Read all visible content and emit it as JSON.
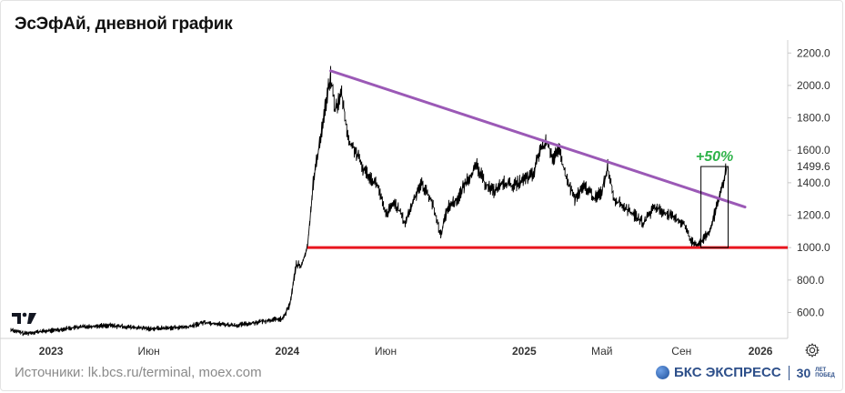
{
  "header": {
    "title": "ЭсЭфАй, дневной график"
  },
  "footer": {
    "source": "Источники: lk.bcs.ru/terminal, moex.com",
    "brand": "БКС ЭКСПРЕСС",
    "brand_number": "30",
    "brand_small": "ЛЕТ ПОБЕД"
  },
  "icons": {
    "settings": "gear-icon",
    "tradingview": "tradingview-logo-icon"
  },
  "colors": {
    "price": "#000000",
    "trendline": "#9b59b6",
    "support": "#e8141e",
    "annotation": "#2fb34a",
    "axis_text": "#333333",
    "brand": "#2d4f8a"
  },
  "chart_data": {
    "type": "line",
    "title": "ЭсЭфАй, дневной график",
    "xlabel": "",
    "ylabel": "",
    "x_ticks": [
      "2023",
      "Июн",
      "2024",
      "Июн",
      "2025",
      "Май",
      "Сен",
      "2026"
    ],
    "x_tick_positions": [
      "2023-01-01",
      "2023-06-01",
      "2024-01-01",
      "2024-06-01",
      "2025-01-01",
      "2025-05-01",
      "2025-09-01",
      "2026-01-01"
    ],
    "y_ticks": [
      "600.0",
      "800.0",
      "1000.0",
      "1200.0",
      "1400.0",
      "1600.0",
      "1800.0",
      "2000.0",
      "2200.0"
    ],
    "ylim": [
      440,
      2280
    ],
    "xlim": [
      "2022-10-31",
      "2026-02-12"
    ],
    "current_price_label": "1499.6",
    "grid": false,
    "series": [
      {
        "points": [
          [
            "2022-10-31",
            495
          ],
          [
            "2022-11-20",
            470
          ],
          [
            "2022-12-10",
            480
          ],
          [
            "2023-01-05",
            490
          ],
          [
            "2023-02-01",
            505
          ],
          [
            "2023-03-01",
            515
          ],
          [
            "2023-04-01",
            520
          ],
          [
            "2023-05-01",
            510
          ],
          [
            "2023-06-01",
            500
          ],
          [
            "2023-07-01",
            505
          ],
          [
            "2023-08-01",
            510
          ],
          [
            "2023-08-25",
            540
          ],
          [
            "2023-09-15",
            530
          ],
          [
            "2023-10-15",
            520
          ],
          [
            "2023-11-15",
            540
          ],
          [
            "2023-12-10",
            555
          ],
          [
            "2023-12-25",
            560
          ],
          [
            "2024-01-05",
            650
          ],
          [
            "2024-01-15",
            900
          ],
          [
            "2024-01-22",
            880
          ],
          [
            "2024-02-01",
            1000
          ],
          [
            "2024-02-10",
            1400
          ],
          [
            "2024-02-20",
            1650
          ],
          [
            "2024-03-01",
            1900
          ],
          [
            "2024-03-08",
            2050
          ],
          [
            "2024-03-15",
            1850
          ],
          [
            "2024-03-25",
            1950
          ],
          [
            "2024-04-05",
            1650
          ],
          [
            "2024-04-15",
            1600
          ],
          [
            "2024-04-25",
            1500
          ],
          [
            "2024-05-05",
            1450
          ],
          [
            "2024-05-20",
            1380
          ],
          [
            "2024-06-01",
            1200
          ],
          [
            "2024-06-15",
            1280
          ],
          [
            "2024-07-01",
            1150
          ],
          [
            "2024-07-15",
            1300
          ],
          [
            "2024-07-25",
            1400
          ],
          [
            "2024-08-10",
            1300
          ],
          [
            "2024-08-25",
            1080
          ],
          [
            "2024-09-05",
            1250
          ],
          [
            "2024-09-20",
            1300
          ],
          [
            "2024-10-05",
            1420
          ],
          [
            "2024-10-20",
            1500
          ],
          [
            "2024-11-01",
            1400
          ],
          [
            "2024-11-15",
            1350
          ],
          [
            "2024-12-01",
            1400
          ],
          [
            "2024-12-15",
            1380
          ],
          [
            "2025-01-01",
            1420
          ],
          [
            "2025-01-15",
            1450
          ],
          [
            "2025-01-25",
            1600
          ],
          [
            "2025-02-05",
            1650
          ],
          [
            "2025-02-15",
            1550
          ],
          [
            "2025-02-25",
            1600
          ],
          [
            "2025-03-05",
            1450
          ],
          [
            "2025-03-20",
            1300
          ],
          [
            "2025-04-05",
            1380
          ],
          [
            "2025-04-20",
            1300
          ],
          [
            "2025-05-01",
            1350
          ],
          [
            "2025-05-10",
            1500
          ],
          [
            "2025-05-20",
            1300
          ],
          [
            "2025-06-01",
            1260
          ],
          [
            "2025-06-20",
            1200
          ],
          [
            "2025-07-05",
            1150
          ],
          [
            "2025-07-20",
            1250
          ],
          [
            "2025-08-05",
            1220
          ],
          [
            "2025-08-20",
            1180
          ],
          [
            "2025-09-05",
            1150
          ],
          [
            "2025-09-15",
            1040
          ],
          [
            "2025-09-25",
            1020
          ],
          [
            "2025-10-05",
            1050
          ],
          [
            "2025-10-15",
            1100
          ],
          [
            "2025-10-25",
            1250
          ],
          [
            "2025-11-01",
            1350
          ],
          [
            "2025-11-10",
            1499.6
          ]
        ]
      }
    ],
    "trendline": {
      "from": [
        "2024-03-08",
        2090
      ],
      "to": [
        "2025-12-08",
        1250
      ]
    },
    "support_level": {
      "value": 1000,
      "from": "2024-02-01"
    },
    "annotations": [
      {
        "text": "+50%",
        "box_from": [
          "2025-10-01",
          1000
        ],
        "box_to": [
          "2025-11-12",
          1500
        ]
      }
    ]
  }
}
